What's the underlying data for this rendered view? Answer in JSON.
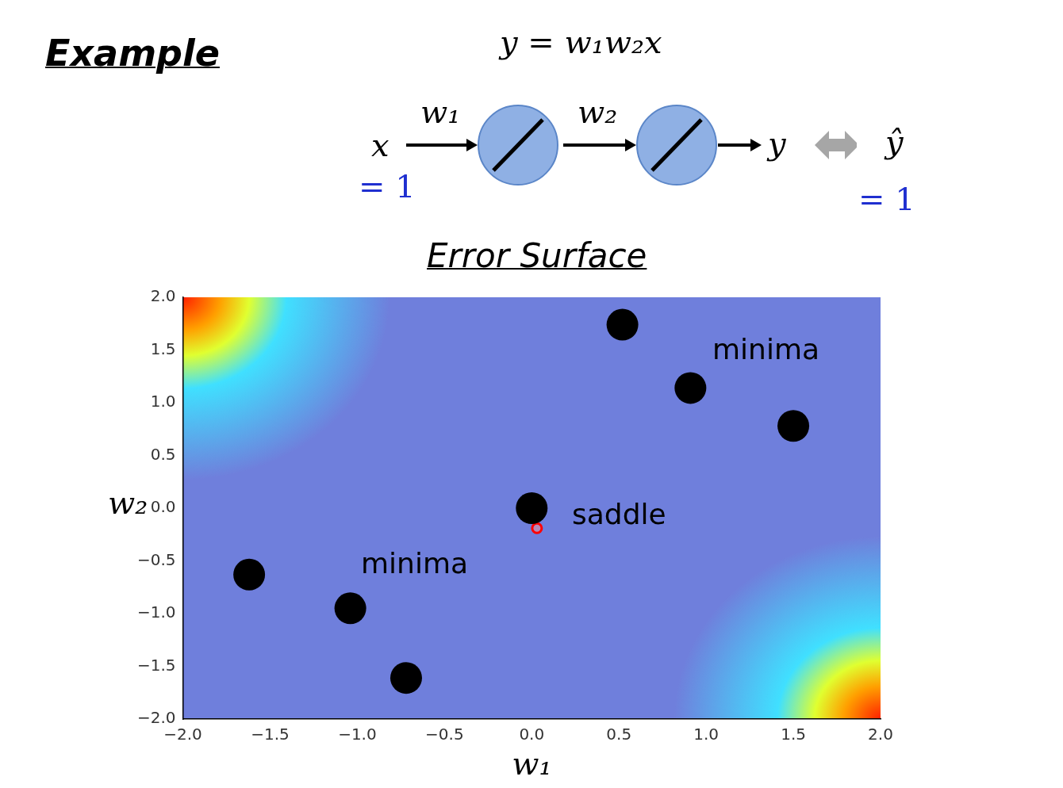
{
  "chart_data": {
    "type": "scatter",
    "title": "Error Surface",
    "xlabel": "w₁",
    "ylabel": "w₂",
    "xlim": [
      -2,
      2
    ],
    "ylim": [
      -2,
      2
    ],
    "xticks": [
      {
        "value": -2,
        "label": "−2.0"
      },
      {
        "value": -1.5,
        "label": "−1.5"
      },
      {
        "value": -1,
        "label": "−1.0"
      },
      {
        "value": -0.5,
        "label": "−0.5"
      },
      {
        "value": 0,
        "label": "0.0"
      },
      {
        "value": 0.5,
        "label": "0.5"
      },
      {
        "value": 1,
        "label": "1.0"
      },
      {
        "value": 1.5,
        "label": "1.5"
      },
      {
        "value": 2,
        "label": "2.0"
      }
    ],
    "yticks": [
      {
        "value": -2,
        "label": "−2.0"
      },
      {
        "value": -1.5,
        "label": "−1.5"
      },
      {
        "value": -1,
        "label": "−1.0"
      },
      {
        "value": -0.5,
        "label": "−0.5"
      },
      {
        "value": 0,
        "label": "0.0"
      },
      {
        "value": 0.5,
        "label": "0.5"
      },
      {
        "value": 1,
        "label": "1.0"
      },
      {
        "value": 1.5,
        "label": "1.5"
      },
      {
        "value": 2,
        "label": "2.0"
      }
    ],
    "series": [
      {
        "color": "#000000",
        "x": [
          0.52,
          0.91,
          1.5,
          -1.62,
          -1.04,
          -0.72
        ],
        "values": [
          1.74,
          1.14,
          0.78,
          -0.63,
          -0.95,
          -1.61
        ]
      },
      {
        "color": "#000000",
        "x": [
          0
        ],
        "values": [
          0
        ]
      },
      {
        "color": "#ff0000",
        "x": [
          0.03
        ],
        "values": [
          -0.19
        ]
      }
    ],
    "marker": "circle",
    "grid": false,
    "legend": false,
    "annotations": [
      "Example",
      "y = w₁w₂x",
      "x",
      "= 1",
      "w₁",
      "w₂",
      "y",
      "ŷ",
      "= 1",
      "minima",
      "minima",
      "saddle"
    ]
  }
}
